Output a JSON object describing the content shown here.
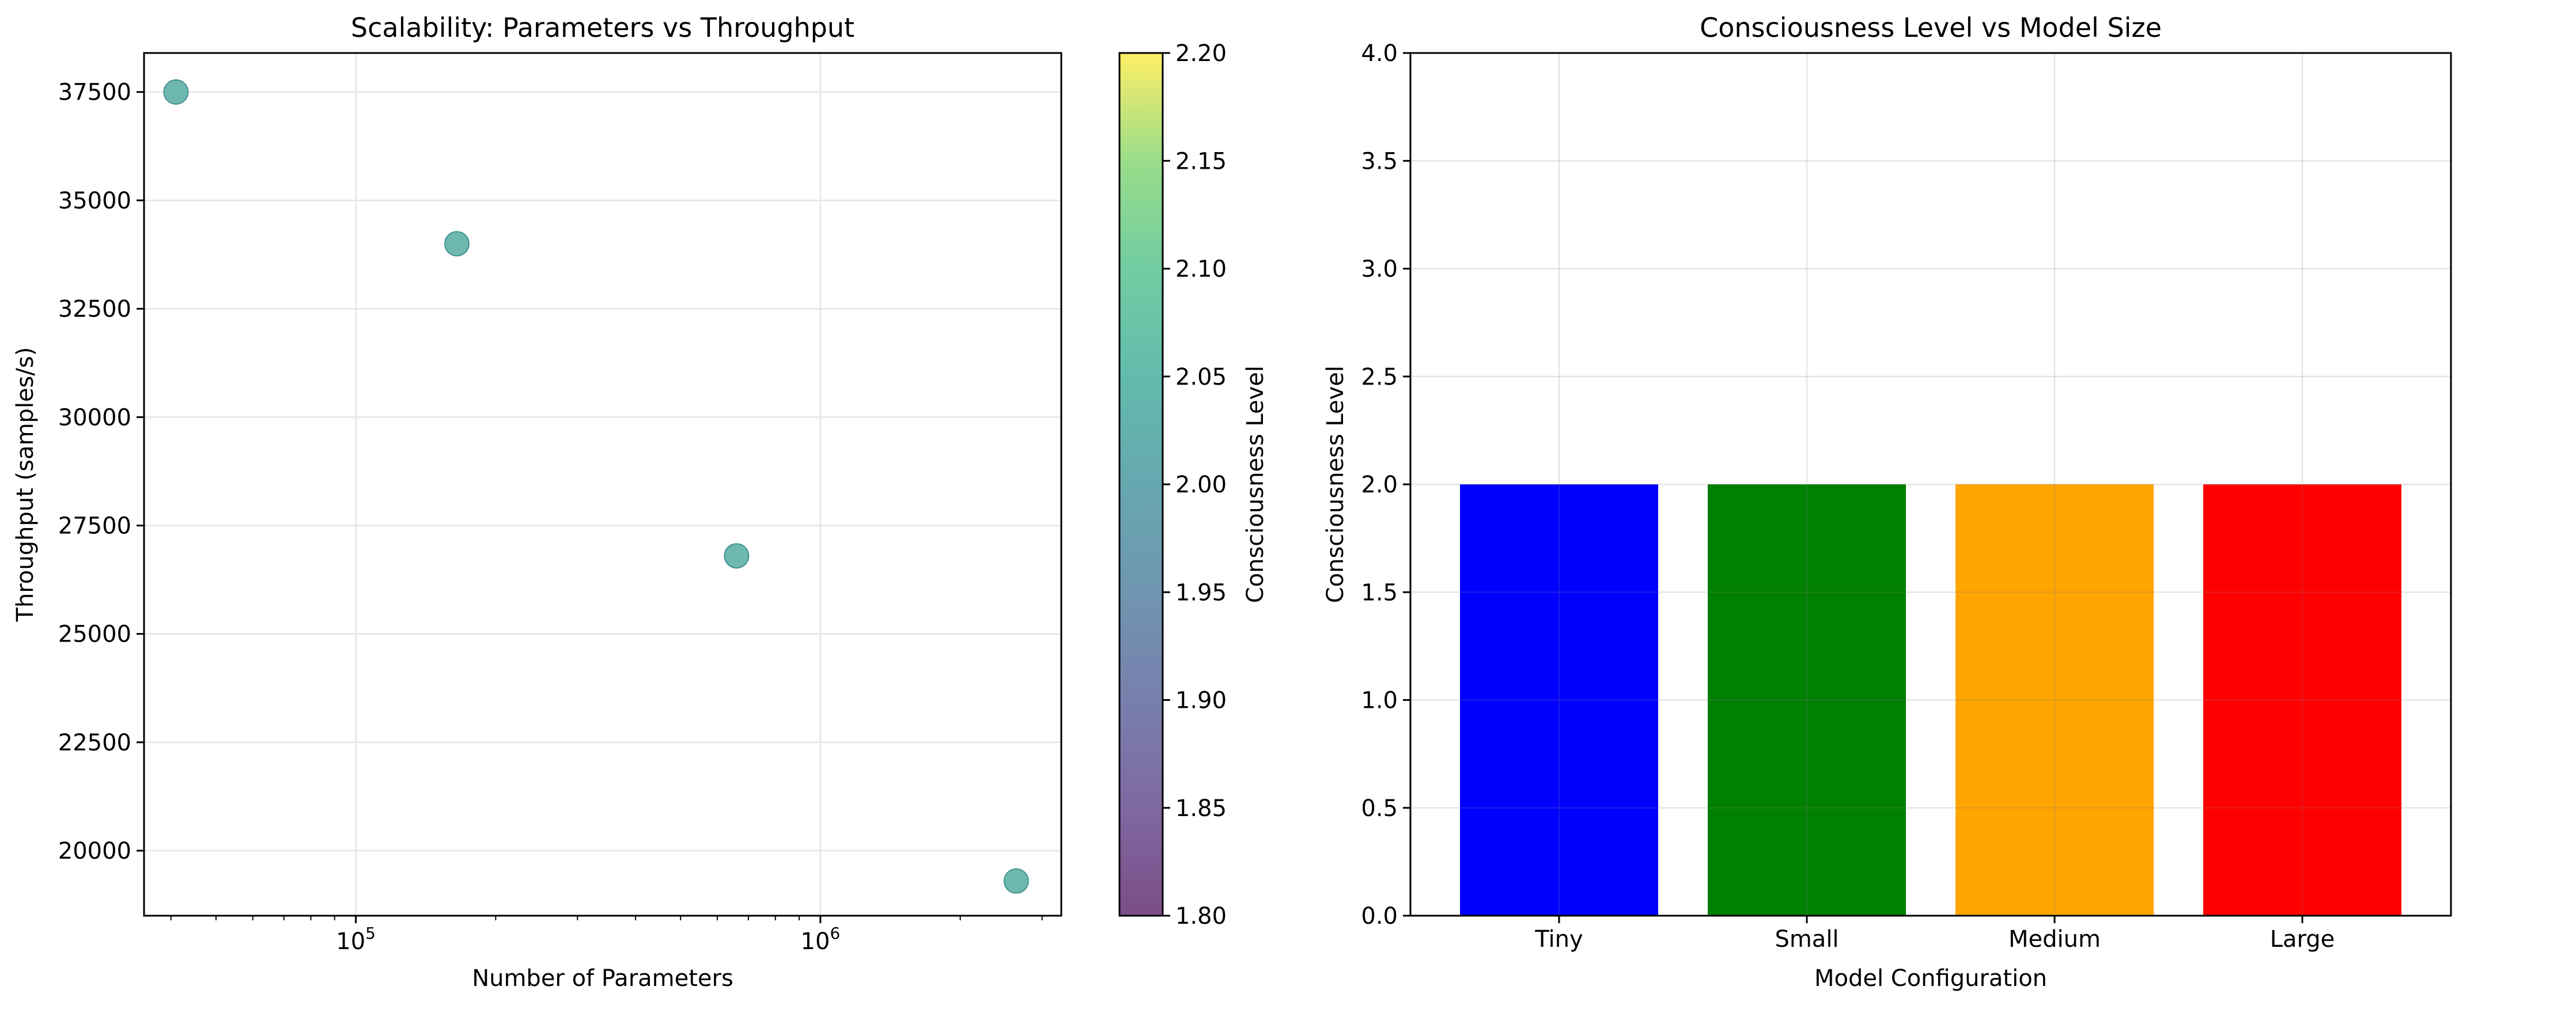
{
  "chart_data": [
    {
      "type": "scatter",
      "title": "Scalability: Parameters vs Throughput",
      "xlabel": "Number of Parameters",
      "ylabel": "Throughput (samples/s)",
      "xscale": "log",
      "xlim": [
        35000,
        3300000
      ],
      "ylim": [
        18500,
        38400
      ],
      "x_ticks": [
        {
          "value": 100000,
          "base": "10",
          "exp": "5"
        },
        {
          "value": 1000000,
          "base": "10",
          "exp": "6"
        }
      ],
      "y_ticks": [
        20000,
        22500,
        25000,
        27500,
        30000,
        32500,
        35000,
        37500
      ],
      "y_tick_labels": [
        "20000",
        "22500",
        "25000",
        "27500",
        "30000",
        "32500",
        "35000",
        "37500"
      ],
      "grid": true,
      "points": [
        {
          "x": 41000,
          "y": 37500,
          "c": 2.0
        },
        {
          "x": 165000,
          "y": 34000,
          "c": 2.0
        },
        {
          "x": 660000,
          "y": 26800,
          "c": 2.0
        },
        {
          "x": 2640000,
          "y": 19300,
          "c": 2.0
        }
      ],
      "point_color": "#5fb0a8",
      "colorbar": {
        "label": "Consciousness Level",
        "range": [
          1.8,
          2.2
        ],
        "ticks": [
          "1.80",
          "1.85",
          "1.90",
          "1.95",
          "2.00",
          "2.05",
          "2.10",
          "2.15",
          "2.20"
        ],
        "colormap": "viridis"
      }
    },
    {
      "type": "bar",
      "title": "Consciousness Level vs Model Size",
      "xlabel": "Model Configuration",
      "ylabel": "Consciousness Level",
      "categories": [
        "Tiny",
        "Small",
        "Medium",
        "Large"
      ],
      "values": [
        2.0,
        2.0,
        2.0,
        2.0
      ],
      "colors": [
        "#0000ff",
        "#008000",
        "#ffa500",
        "#ff0000"
      ],
      "ylim": [
        0,
        4.0
      ],
      "y_ticks": [
        "0.0",
        "0.5",
        "1.0",
        "1.5",
        "2.0",
        "2.5",
        "3.0",
        "3.5",
        "4.0"
      ],
      "grid": true
    }
  ]
}
